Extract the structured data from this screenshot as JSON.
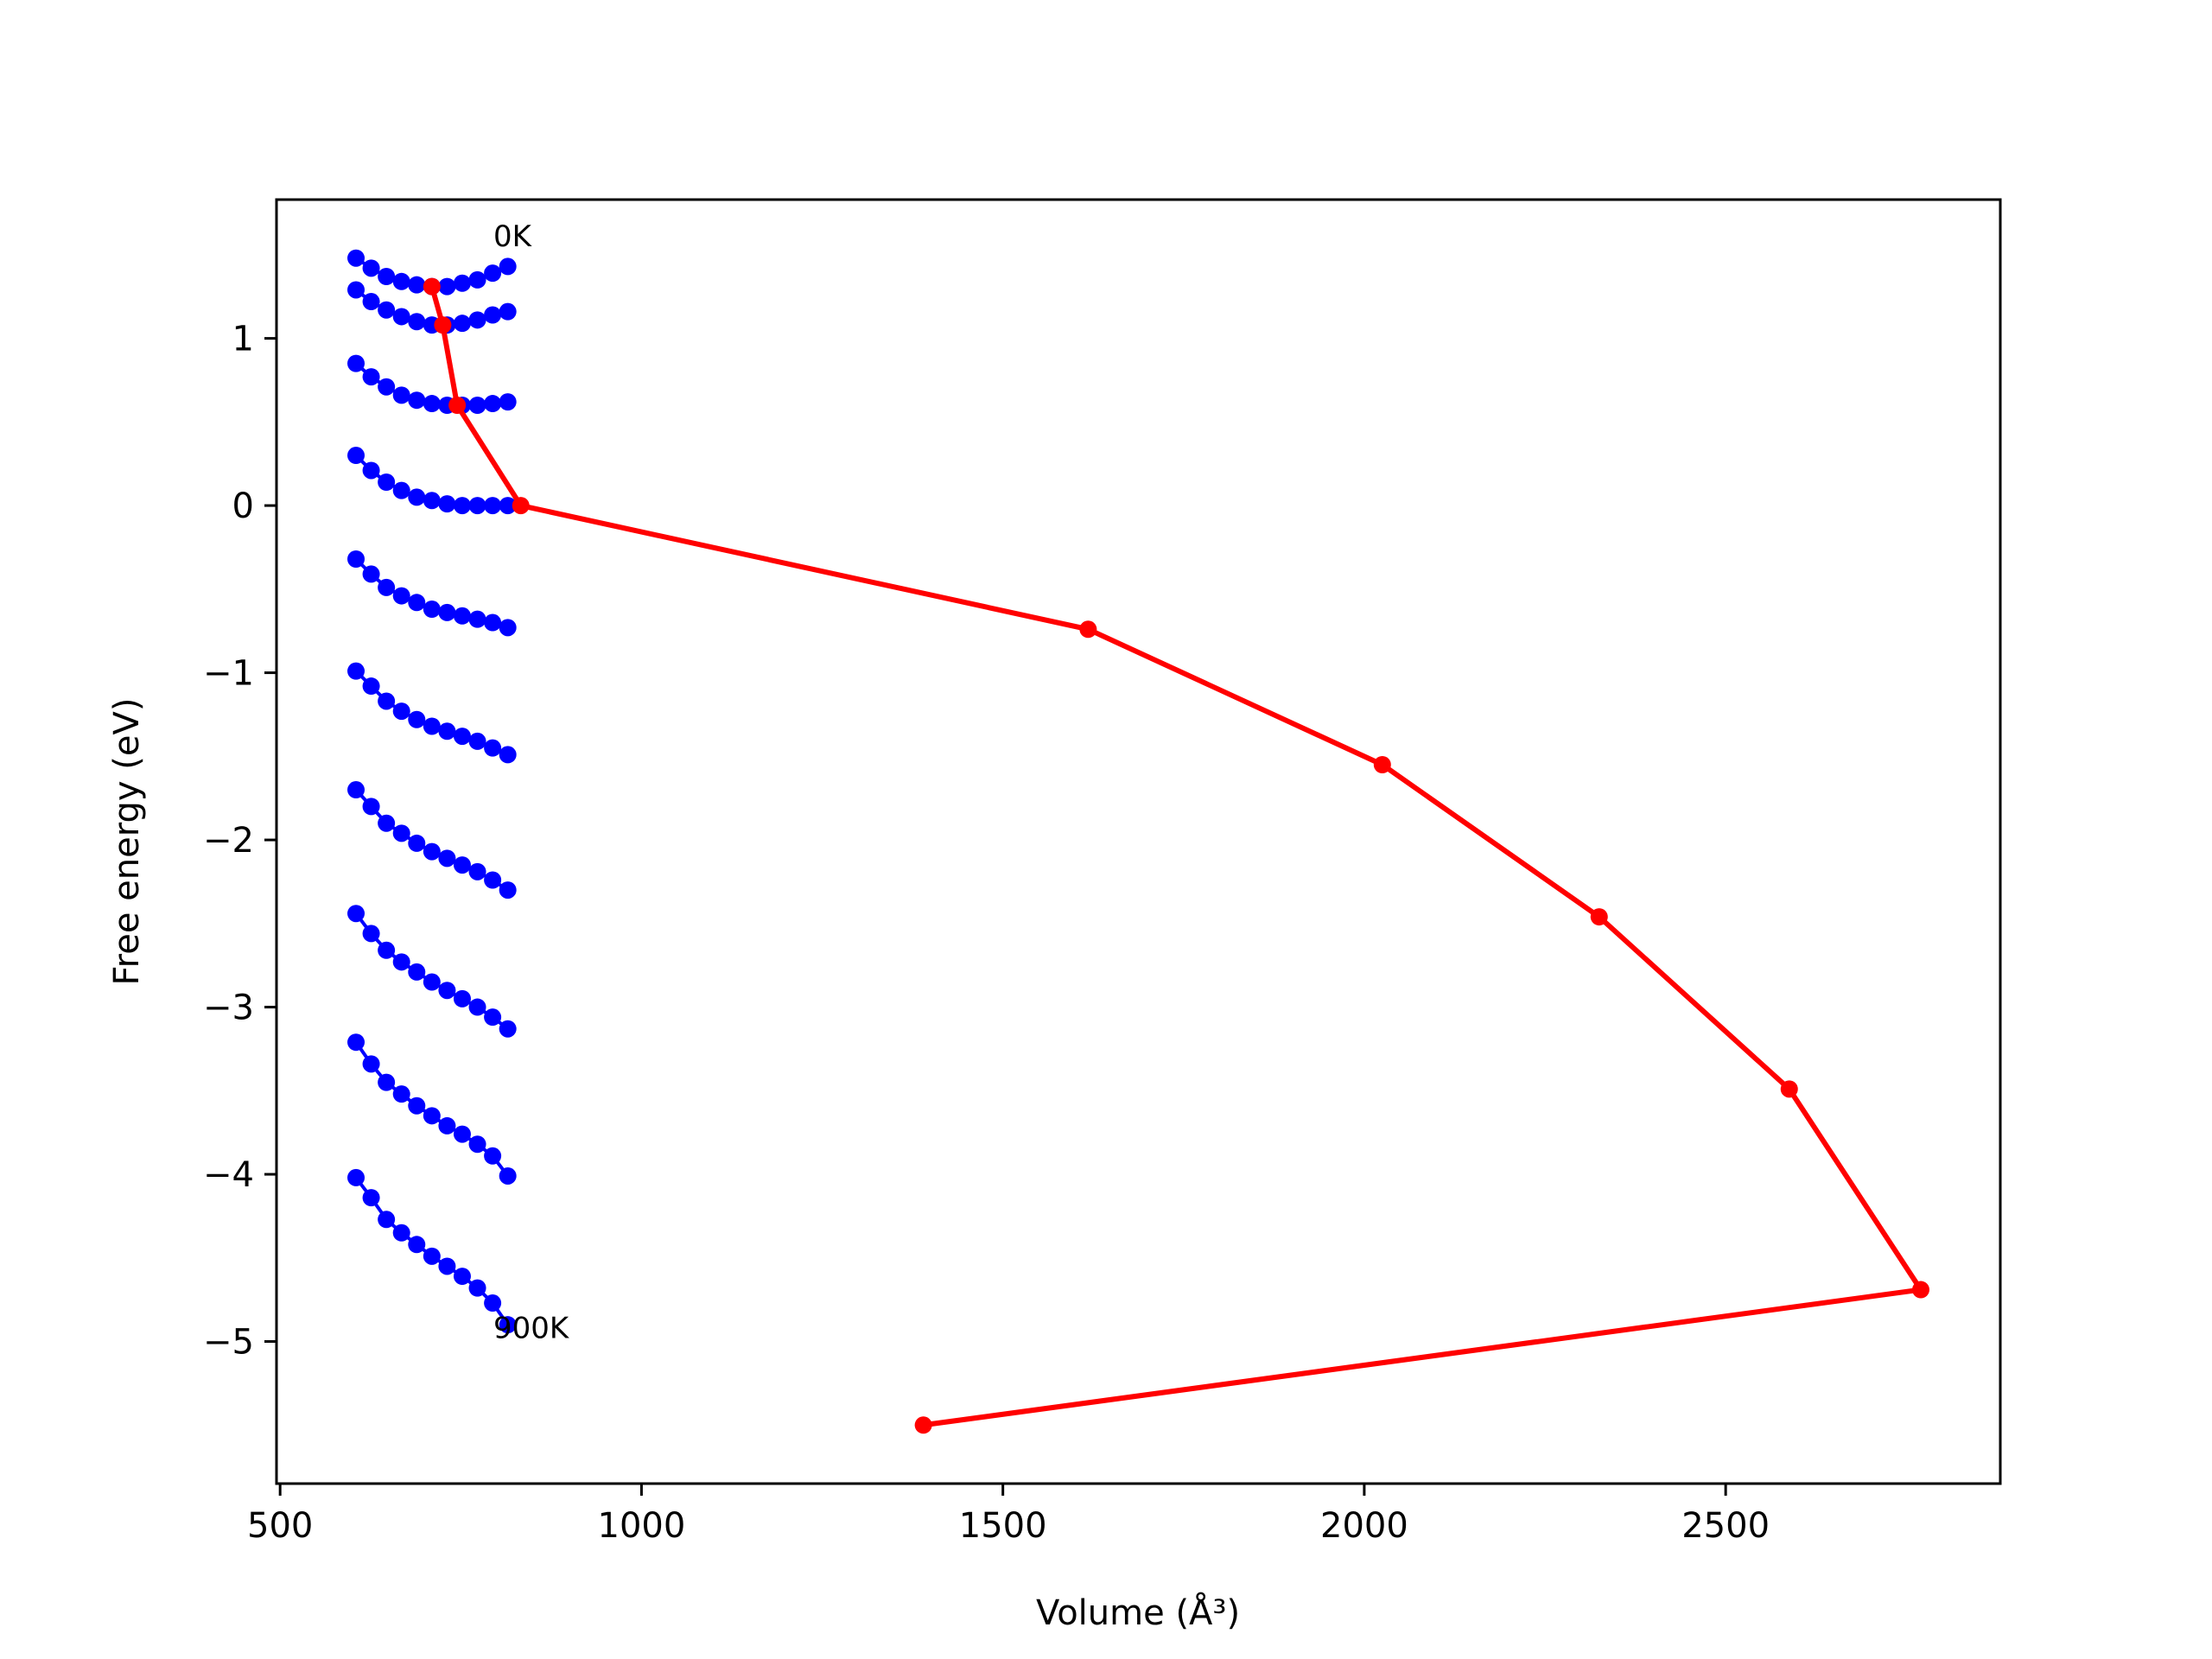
{
  "chart_data": {
    "type": "line",
    "xlabel": "Volume (Å³)",
    "ylabel": "Free energy (eV)",
    "xlim": [
      495,
      2880
    ],
    "ylim": [
      -5.85,
      1.83
    ],
    "xticks": [
      500,
      1000,
      1500,
      2000,
      2500
    ],
    "yticks": [
      1,
      0,
      -1,
      -2,
      -3,
      -4,
      -5
    ],
    "xtick_labels": [
      "500",
      "1000",
      "1500",
      "2000",
      "2500"
    ],
    "ytick_labels": [
      "1",
      "0",
      "−1",
      "−2",
      "−3",
      "−4",
      "−5"
    ],
    "grid": false,
    "annotations": [
      {
        "text": "0K",
        "x": 795,
        "y": 1.55
      },
      {
        "text": "900K",
        "x": 795,
        "y": -4.98
      }
    ],
    "volumes": [
      605,
      626,
      647,
      668,
      689,
      710,
      731,
      752,
      773,
      794,
      815
    ],
    "series": [
      {
        "color": "#0000ff",
        "values": [
          1.48,
          1.42,
          1.37,
          1.34,
          1.32,
          1.31,
          1.31,
          1.33,
          1.35,
          1.39,
          1.43
        ]
      },
      {
        "color": "#0000ff",
        "values": [
          1.29,
          1.22,
          1.17,
          1.13,
          1.1,
          1.08,
          1.08,
          1.09,
          1.11,
          1.14,
          1.16
        ]
      },
      {
        "color": "#0000ff",
        "values": [
          0.85,
          0.77,
          0.71,
          0.66,
          0.63,
          0.61,
          0.6,
          0.6,
          0.6,
          0.61,
          0.62
        ]
      },
      {
        "color": "#0000ff",
        "values": [
          0.3,
          0.21,
          0.14,
          0.09,
          0.05,
          0.03,
          0.01,
          0.0,
          0.0,
          0.0,
          0.0
        ]
      },
      {
        "color": "#0000ff",
        "values": [
          -0.32,
          -0.41,
          -0.49,
          -0.54,
          -0.58,
          -0.62,
          -0.64,
          -0.66,
          -0.68,
          -0.7,
          -0.73
        ]
      },
      {
        "color": "#0000ff",
        "values": [
          -0.99,
          -1.08,
          -1.17,
          -1.23,
          -1.28,
          -1.32,
          -1.35,
          -1.38,
          -1.41,
          -1.45,
          -1.49
        ]
      },
      {
        "color": "#0000ff",
        "values": [
          -1.7,
          -1.8,
          -1.9,
          -1.96,
          -2.02,
          -2.07,
          -2.11,
          -2.15,
          -2.19,
          -2.24,
          -2.3
        ]
      },
      {
        "color": "#0000ff",
        "values": [
          -2.44,
          -2.56,
          -2.66,
          -2.73,
          -2.79,
          -2.85,
          -2.9,
          -2.95,
          -3.0,
          -3.06,
          -3.13
        ]
      },
      {
        "color": "#0000ff",
        "values": [
          -3.21,
          -3.34,
          -3.45,
          -3.52,
          -3.59,
          -3.65,
          -3.71,
          -3.76,
          -3.82,
          -3.89,
          -4.01
        ]
      },
      {
        "color": "#0000ff",
        "values": [
          -4.02,
          -4.14,
          -4.27,
          -4.35,
          -4.42,
          -4.49,
          -4.55,
          -4.61,
          -4.68,
          -4.77,
          -4.9
        ]
      }
    ],
    "minima_curve": {
      "color": "#ff0000",
      "x": [
        710,
        725,
        745,
        833,
        1618,
        2025,
        2325,
        2588,
        2770,
        1390
      ],
      "y": [
        1.31,
        1.08,
        0.6,
        0.0,
        -0.74,
        -1.55,
        -2.46,
        -3.49,
        -4.69,
        -5.5
      ]
    }
  }
}
